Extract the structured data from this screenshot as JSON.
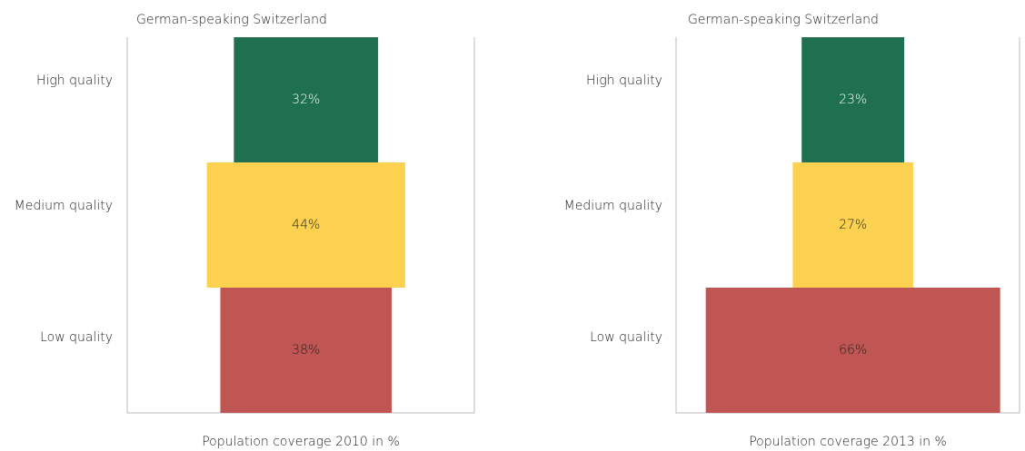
{
  "chart_data": [
    {
      "type": "funnel",
      "title": "German-speaking Switzerland",
      "categories": [
        "High quality",
        "Medium quality",
        "Low quality"
      ],
      "values": [
        32,
        44,
        38
      ],
      "value_labels": [
        "32%",
        "44%",
        "38%"
      ],
      "colors": [
        "#1f7050",
        "#fdd150",
        "#c05653"
      ],
      "x_label": "Population coverage 2010 in %",
      "xlim": [
        0,
        77
      ]
    },
    {
      "type": "funnel",
      "title": "German-speaking Switzerland",
      "categories": [
        "High quality",
        "Medium quality",
        "Low quality"
      ],
      "values": [
        23,
        27,
        66
      ],
      "value_labels": [
        "23%",
        "27%",
        "66%"
      ],
      "colors": [
        "#1f7050",
        "#fdd150",
        "#c05653"
      ],
      "x_label": "Population coverage 2013 in %",
      "xlim": [
        0,
        77
      ]
    }
  ]
}
